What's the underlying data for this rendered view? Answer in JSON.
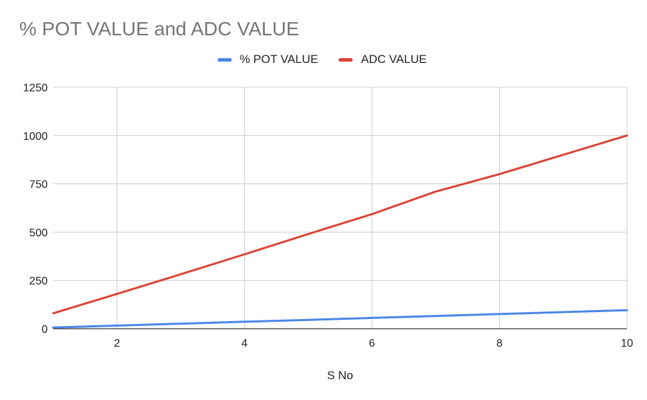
{
  "chart_data": {
    "type": "line",
    "title": "% POT VALUE and ADC VALUE",
    "xlabel": "S No",
    "ylabel": "",
    "x": [
      1,
      2,
      3,
      4,
      5,
      6,
      7,
      8,
      9,
      10
    ],
    "xlim": [
      1,
      10
    ],
    "ylim": [
      0,
      1250
    ],
    "xticks": [
      2,
      4,
      6,
      8,
      10
    ],
    "yticks": [
      0,
      250,
      500,
      750,
      1000,
      1250
    ],
    "grid": true,
    "legend_position": "top",
    "series": [
      {
        "name": "% POT VALUE",
        "color": "#4a86e8",
        "values": [
          6,
          16,
          26,
          36,
          46,
          56,
          66,
          76,
          86,
          96
        ]
      },
      {
        "name": "ADC VALUE",
        "color": "#db4437",
        "values": [
          80,
          180,
          282,
          385,
          490,
          593,
          710,
          800,
          900,
          1000
        ]
      }
    ]
  }
}
